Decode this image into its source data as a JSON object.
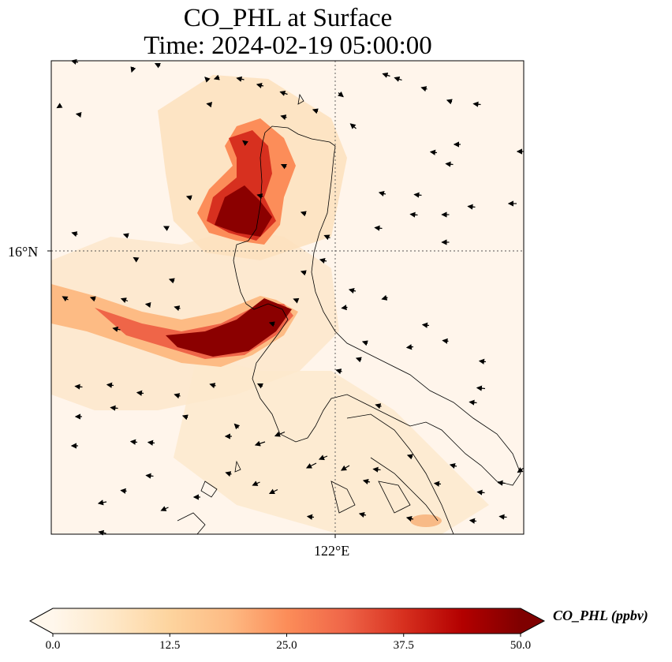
{
  "title_line1": "CO_PHL at Surface",
  "title_line2": "Time: 2024-02-19 05:00:00",
  "map": {
    "lat_label": "16°N",
    "lon_label": "122°E",
    "gridlines": "dotted",
    "background_color": "#fff5eb"
  },
  "colorbar": {
    "label": "CO_PHL (ppbv)",
    "min": 0.0,
    "max": 50.0,
    "ticks": [
      "0.0",
      "12.5",
      "25.0",
      "37.5",
      "50.0"
    ],
    "extend": "both",
    "colormap": "OrRd",
    "colors": [
      "#fff7ec",
      "#fee8c8",
      "#fdd49e",
      "#fdbb84",
      "#fc8d59",
      "#ef6548",
      "#d7301f",
      "#b30000",
      "#7f0000"
    ]
  }
}
